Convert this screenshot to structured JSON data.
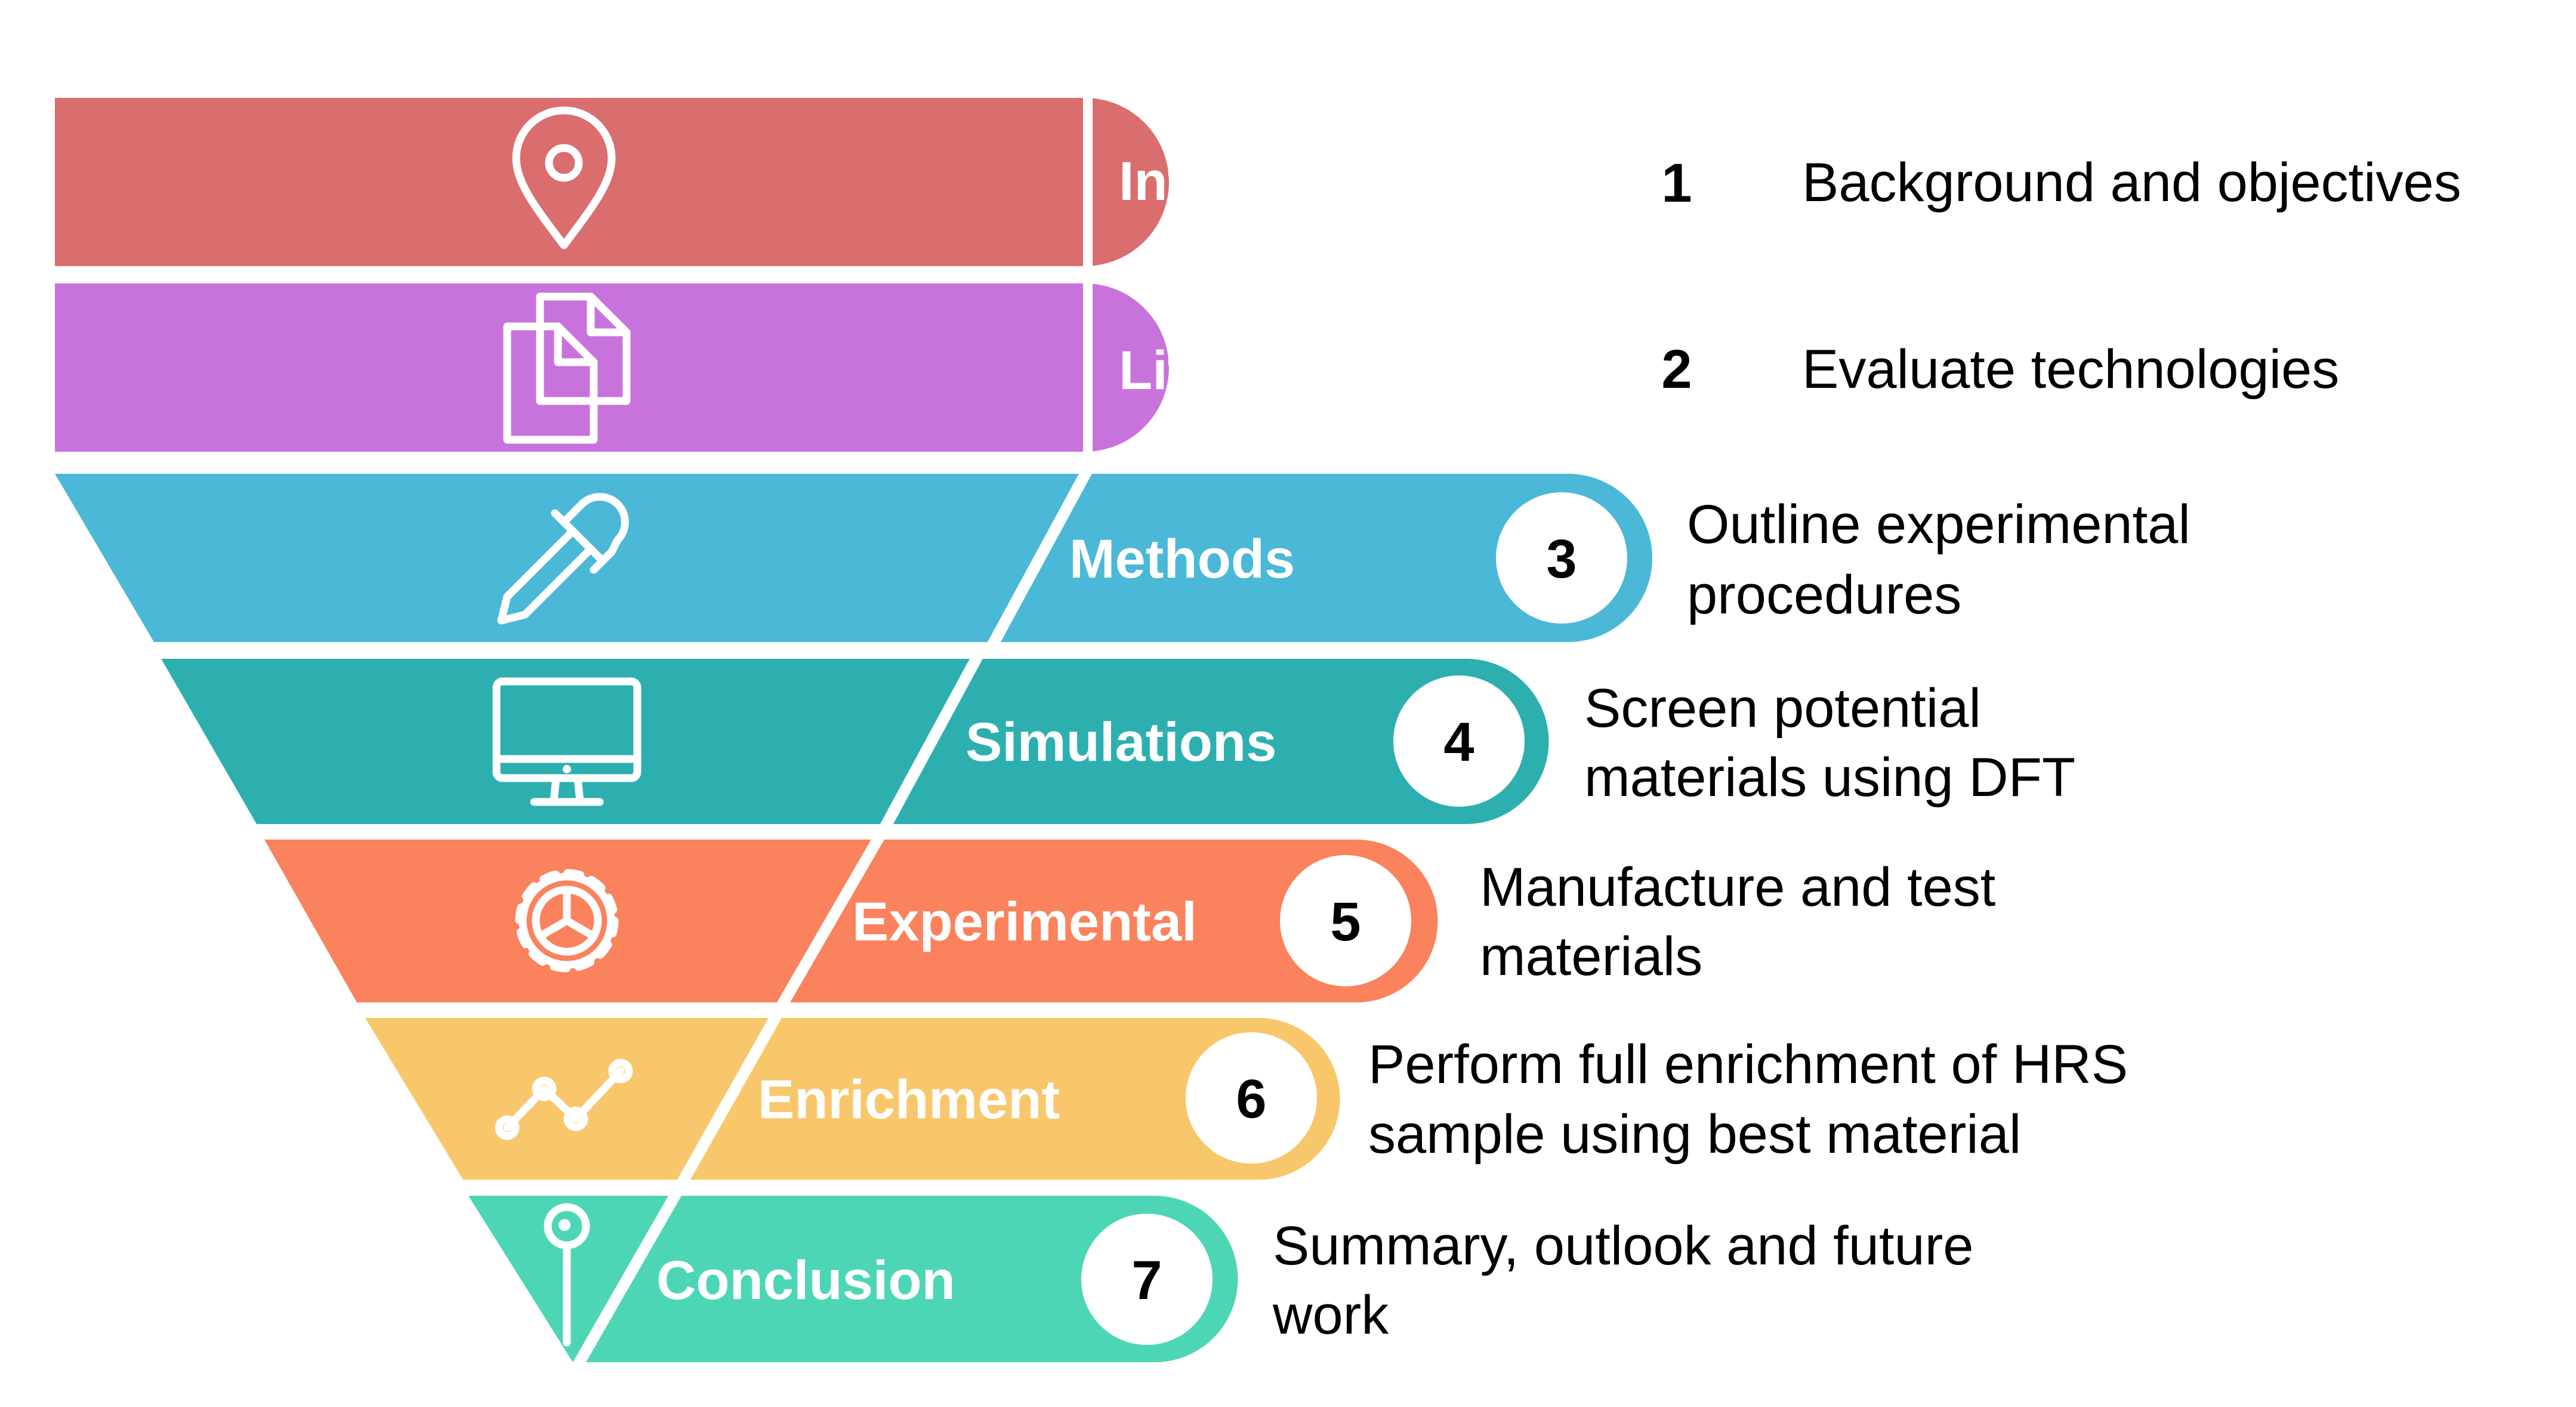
{
  "steps": [
    {
      "number": "1",
      "label": "Introduction",
      "description_lines": [
        "Background and objectives"
      ],
      "color": "#DA6E6E",
      "icon": "map-pin-icon"
    },
    {
      "number": "2",
      "label": "Literature review",
      "description_lines": [
        "Evaluate technologies"
      ],
      "color": "#C873DB",
      "icon": "documents-icon"
    },
    {
      "number": "3",
      "label": "Methods",
      "description_lines": [
        "Outline experimental",
        "procedures"
      ],
      "color": "#4AB8D6",
      "icon": "dropper-icon"
    },
    {
      "number": "4",
      "label": "Simulations",
      "description_lines": [
        "Screen potential",
        "materials using DFT"
      ],
      "color": "#2EAFAF",
      "icon": "monitor-icon"
    },
    {
      "number": "5",
      "label": "Experimental",
      "description_lines": [
        "Manufacture and test",
        "materials"
      ],
      "color": "#FA825C",
      "icon": "gear-icon"
    },
    {
      "number": "6",
      "label": "Enrichment",
      "description_lines": [
        "Perform full enrichment of HRS",
        "sample using best material"
      ],
      "color": "#F9C76B",
      "icon": "line-chart-icon"
    },
    {
      "number": "7",
      "label": "Conclusion",
      "description_lines": [
        "Summary, outlook and future",
        "work"
      ],
      "color": "#4DD6B5",
      "icon": "push-pin-icon"
    }
  ]
}
